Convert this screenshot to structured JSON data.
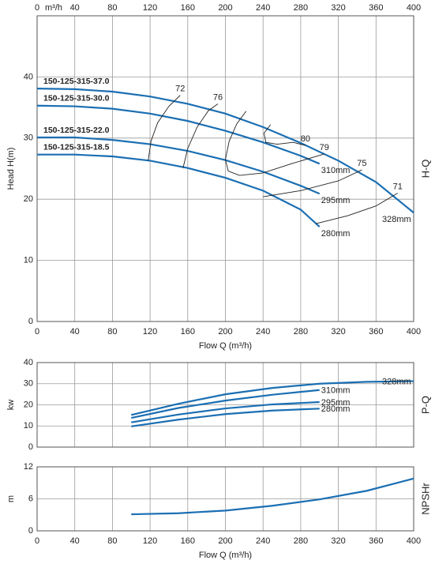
{
  "chart_data": [
    {
      "type": "line",
      "xlabel": "Flow Q (m³/h)",
      "ylabel": "Head H(m)",
      "side_label": "H-Q",
      "x_top_unit": "m³/h",
      "x_tick_labels": [
        "top",
        "bottom"
      ],
      "xlim": [
        0,
        400
      ],
      "xticks": [
        0,
        40,
        80,
        120,
        160,
        200,
        240,
        280,
        320,
        360,
        400
      ],
      "ylim": [
        0,
        50
      ],
      "yticks": [
        0,
        10,
        20,
        30,
        40
      ],
      "grid": true,
      "series": [
        {
          "name": "328mm",
          "model": "150-125-315-37.0",
          "color": "#1b6fb3",
          "x": [
            0,
            40,
            80,
            120,
            160,
            200,
            240,
            280,
            320,
            360,
            400
          ],
          "values": [
            38.1,
            38,
            37.6,
            36.8,
            35.6,
            34,
            31.8,
            29.2,
            26.3,
            22.8,
            17.8
          ]
        },
        {
          "name": "310mm",
          "model": "150-125-315-30.0",
          "color": "#1b6fb3",
          "x": [
            0,
            40,
            80,
            120,
            160,
            200,
            240,
            280,
            300
          ],
          "values": [
            35.3,
            35.2,
            34.8,
            34,
            32.8,
            31.2,
            29.3,
            27.1,
            25.8
          ]
        },
        {
          "name": "295mm",
          "model": "150-125-315-22.0",
          "color": "#1b6fb3",
          "x": [
            0,
            40,
            80,
            120,
            160,
            200,
            240,
            280,
            300
          ],
          "values": [
            30.1,
            30.1,
            29.7,
            29,
            27.9,
            26.4,
            24.5,
            22.2,
            20.9
          ]
        },
        {
          "name": "280mm",
          "model": "150-125-315-18.5",
          "color": "#1b6fb3",
          "x": [
            0,
            40,
            80,
            120,
            160,
            200,
            240,
            280,
            300
          ],
          "values": [
            27.3,
            27.3,
            27,
            26.3,
            25.1,
            23.5,
            21.4,
            18.3,
            15.5
          ]
        }
      ],
      "efficiency_lines": [
        {
          "label": "72",
          "x": [
            118,
            121,
            128,
            140,
            152
          ],
          "values": [
            26.3,
            29.5,
            32.5,
            35.2,
            37
          ]
        },
        {
          "label": "76",
          "x": [
            155,
            160,
            170,
            182,
            192
          ],
          "values": [
            25.1,
            28.3,
            31.8,
            34.5,
            35.6
          ]
        },
        {
          "label": "79",
          "x": [
            222,
            212,
            204,
            200,
            203,
            215,
            240,
            270,
            305
          ],
          "values": [
            34.4,
            32.3,
            29.5,
            26.5,
            24.6,
            23.9,
            24.3,
            25.8,
            27.4
          ]
        },
        {
          "label": "80",
          "x": [
            248,
            241,
            243,
            255,
            272,
            285
          ],
          "values": [
            32.2,
            30.8,
            29.3,
            29,
            29.3,
            28.8
          ]
        },
        {
          "label": "75",
          "x": [
            240,
            280,
            320,
            345
          ],
          "values": [
            20.4,
            21.4,
            23,
            24.8
          ]
        },
        {
          "label": "71",
          "x": [
            296,
            330,
            360,
            383
          ],
          "values": [
            16,
            17.3,
            18.9,
            21
          ]
        }
      ]
    },
    {
      "type": "line",
      "ylabel": "kw",
      "side_label": "P-Q",
      "x_tick_labels": [],
      "xlim": [
        0,
        400
      ],
      "xticks": [
        0,
        40,
        80,
        120,
        160,
        200,
        240,
        280,
        320,
        360,
        400
      ],
      "ylim": [
        0,
        40
      ],
      "yticks": [
        0,
        10,
        20,
        30,
        40
      ],
      "grid": true,
      "series": [
        {
          "name": "328mm",
          "color": "#1b6fb3",
          "x": [
            100,
            150,
            200,
            250,
            300,
            350,
            400
          ],
          "values": [
            15.2,
            20.5,
            25,
            28,
            30,
            30.9,
            31.2
          ]
        },
        {
          "name": "310mm",
          "color": "#1b6fb3",
          "x": [
            100,
            150,
            200,
            250,
            300
          ],
          "values": [
            13.8,
            18.5,
            22,
            24.8,
            27
          ]
        },
        {
          "name": "295mm",
          "color": "#1b6fb3",
          "x": [
            100,
            150,
            200,
            250,
            300
          ],
          "values": [
            11.7,
            15.4,
            18.3,
            20.2,
            21.3
          ]
        },
        {
          "name": "280mm",
          "color": "#1b6fb3",
          "x": [
            100,
            150,
            200,
            250,
            300
          ],
          "values": [
            9.8,
            13,
            15.6,
            17.3,
            18.2
          ]
        }
      ]
    },
    {
      "type": "line",
      "xlabel": "Flow Q (m³/h)",
      "ylabel": "m",
      "side_label": "NPSHr",
      "x_tick_labels": [
        "bottom"
      ],
      "xlim": [
        0,
        400
      ],
      "xticks": [
        0,
        40,
        80,
        120,
        160,
        200,
        240,
        280,
        320,
        360,
        400
      ],
      "ylim": [
        0,
        12
      ],
      "yticks": [
        0,
        6,
        12
      ],
      "grid": true,
      "series": [
        {
          "color": "#1b6fb3",
          "x": [
            100,
            150,
            200,
            250,
            300,
            350,
            400
          ],
          "values": [
            3.1,
            3.3,
            3.8,
            4.7,
            5.9,
            7.5,
            9.8
          ]
        }
      ]
    }
  ]
}
